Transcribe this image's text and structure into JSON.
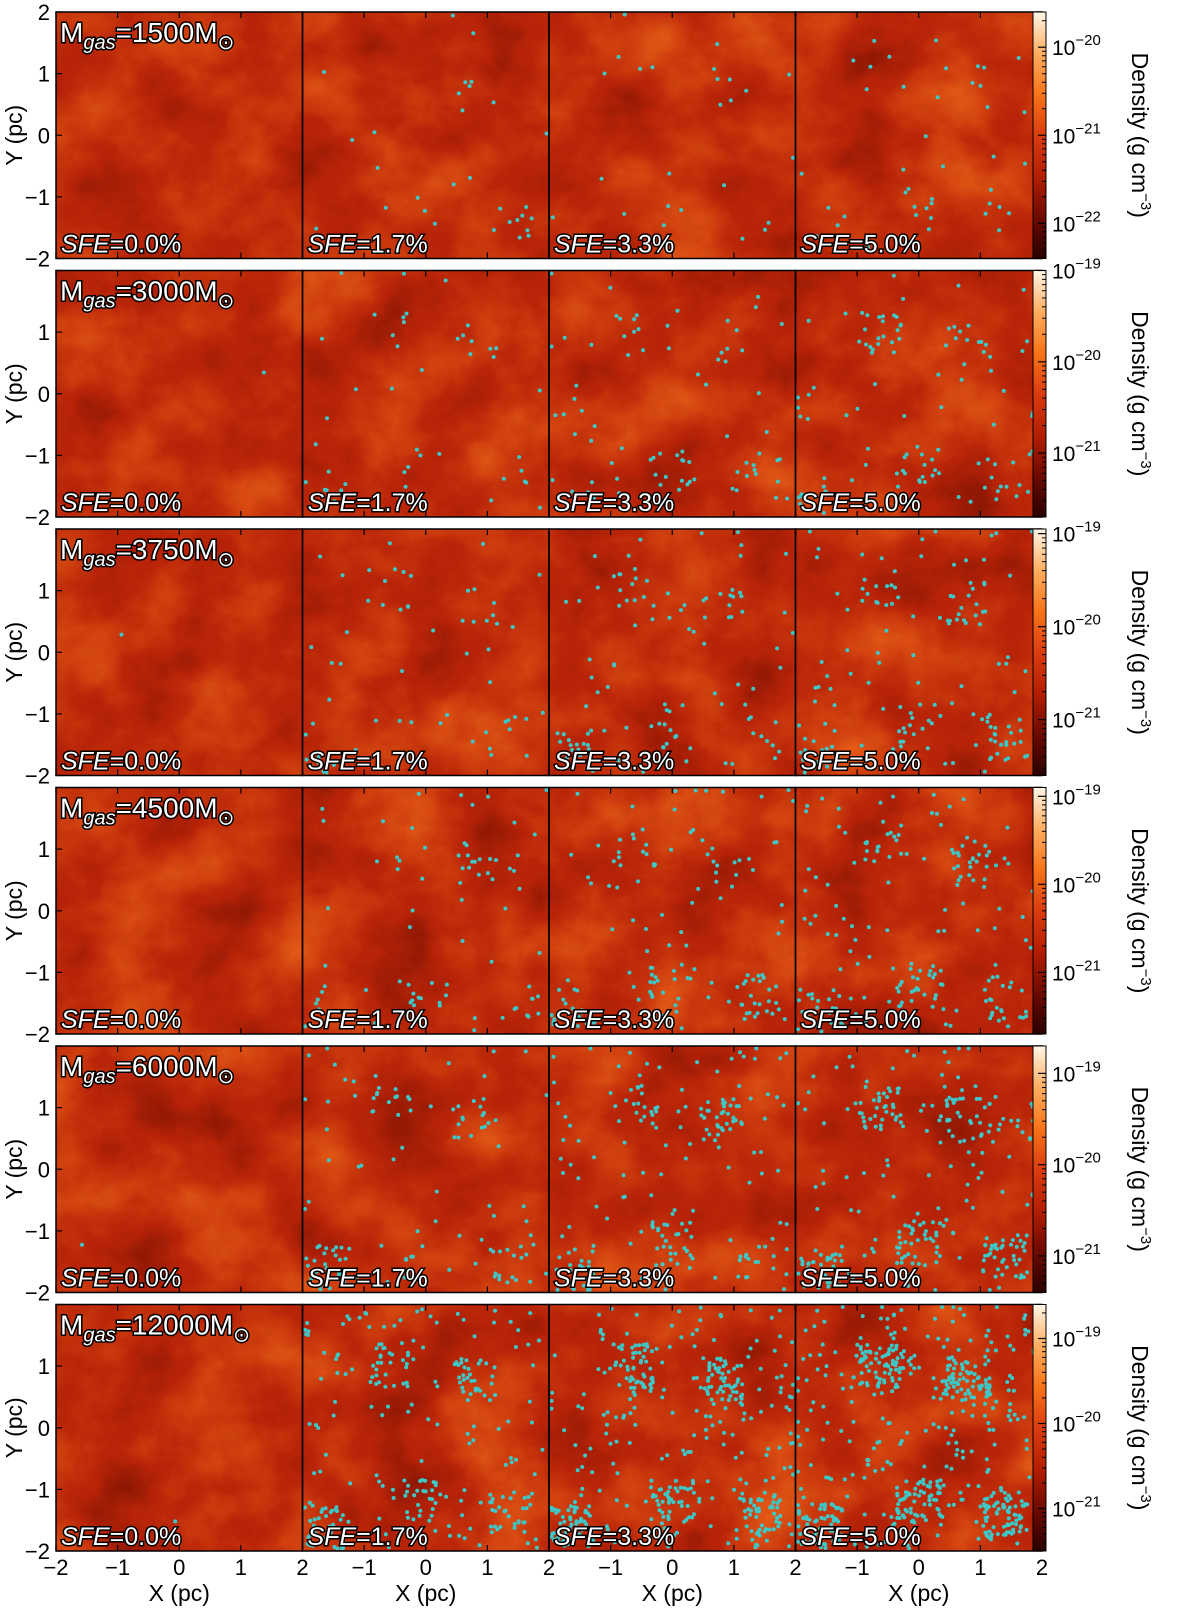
{
  "chart_data": {
    "type": "heatmap",
    "description_units": {
      "x": "pc",
      "y": "pc"
    },
    "x_axis": {
      "label": "X (pc)",
      "range": [
        -2,
        2
      ],
      "ticks": [
        -2,
        -1,
        0,
        1,
        2
      ],
      "tick_labels": [
        "−2",
        "−1",
        "0",
        "1",
        "2"
      ]
    },
    "y_axis": {
      "label": "Y (pc)",
      "range": [
        -2,
        2
      ],
      "ticks": [
        -2,
        -1,
        0,
        1,
        2
      ],
      "tick_labels": [
        "−2",
        "−1",
        "0",
        "1",
        "2"
      ]
    },
    "columns": [
      {
        "sfe": "0.0%"
      },
      {
        "sfe": "1.7%"
      },
      {
        "sfe": "3.3%"
      },
      {
        "sfe": "5.0%"
      }
    ],
    "sfe_prefix": "SFE",
    "rows": [
      {
        "mass": "1500",
        "stars": [
          0,
          30,
          25,
          45
        ],
        "colorbar": {
          "label_main": "Density (g cm",
          "label_exp": "−3",
          "label_close": ")",
          "log_range": [
            -22.4,
            -19.6
          ],
          "ticks": [
            -20,
            -21,
            -22
          ]
        }
      },
      {
        "mass": "3000",
        "stars": [
          1,
          45,
          80,
          110
        ],
        "colorbar": {
          "label_main": "Density (g cm",
          "label_exp": "−3",
          "label_close": ")",
          "log_range": [
            -21.7,
            -19.0
          ],
          "ticks": [
            -19,
            -20,
            -21
          ]
        }
      },
      {
        "mass": "3750",
        "stars": [
          1,
          60,
          110,
          150
        ],
        "colorbar": {
          "label_main": "Density (g cm",
          "label_exp": "−3",
          "label_close": ")",
          "log_range": [
            -21.6,
            -18.95
          ],
          "ticks": [
            -19,
            -20,
            -21
          ]
        }
      },
      {
        "mass": "4500",
        "stars": [
          1,
          80,
          140,
          190
        ],
        "colorbar": {
          "label_main": "Density (g cm",
          "label_exp": "−3",
          "label_close": ")",
          "log_range": [
            -21.7,
            -18.9
          ],
          "ticks": [
            -19,
            -20,
            -21
          ]
        }
      },
      {
        "mass": "6000",
        "stars": [
          1,
          120,
          200,
          280
        ],
        "colorbar": {
          "label_main": "Density (g cm",
          "label_exp": "−3",
          "label_close": ")",
          "log_range": [
            -21.4,
            -18.7
          ],
          "ticks": [
            -19,
            -20,
            -21
          ]
        }
      },
      {
        "mass": "12000",
        "stars": [
          1,
          260,
          420,
          560
        ],
        "colorbar": {
          "label_main": "Density (g cm",
          "label_exp": "−3",
          "label_close": ")",
          "log_range": [
            -21.5,
            -18.6
          ],
          "ticks": [
            -19,
            -20,
            -21
          ]
        }
      }
    ],
    "mass_label": {
      "prefix": "M",
      "sub": "gas",
      "suffix": "M",
      "sun_symbol": "⊙"
    },
    "colormap": [
      "#2a0000",
      "#6e0a00",
      "#b41e00",
      "#dc3c10",
      "#f87418",
      "#ffae60",
      "#fff6e8"
    ],
    "star_color": "#3ec7c7",
    "grid": false,
    "legend": "none"
  }
}
